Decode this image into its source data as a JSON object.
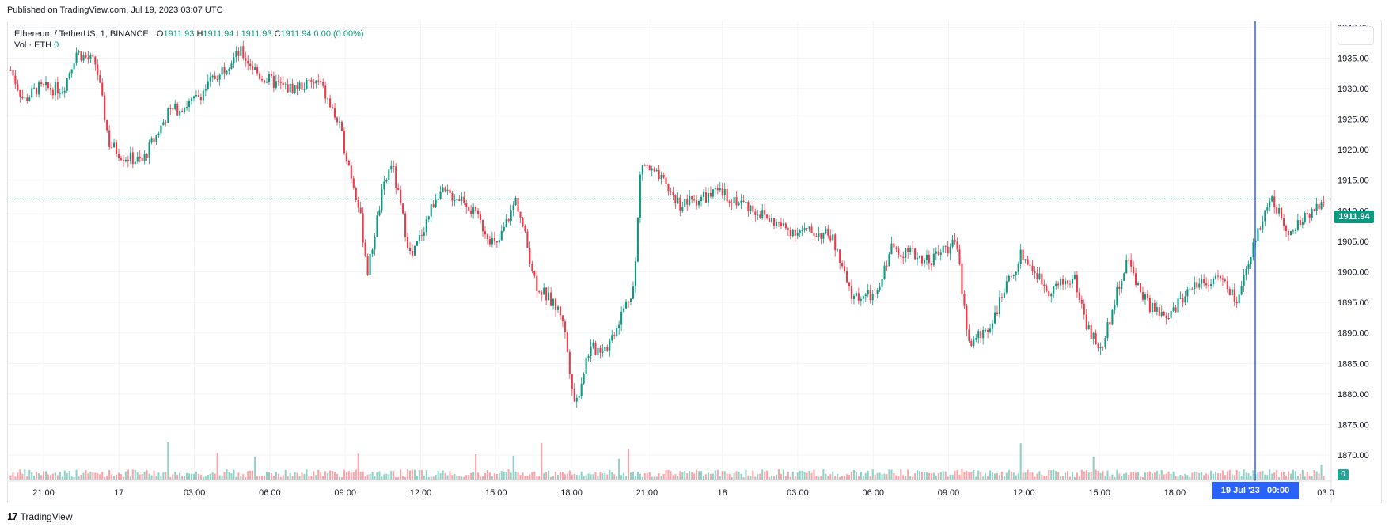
{
  "published": "Published on TradingView.com, Jul 19, 2023 03:07 UTC",
  "legend": {
    "symbol": "Ethereum / TetherUS, 1, BINANCE",
    "o_label": "O",
    "o_value": "1911.93",
    "h_label": "H",
    "h_value": "1911.94",
    "l_label": "L",
    "l_value": "1911.93",
    "c_label": "C",
    "c_value": "1911.94",
    "change": "0.00 (0.00%)",
    "vol_label": "Vol · ETH",
    "vol_value": "0"
  },
  "price_badge": "1911.94",
  "volume_badge": "0",
  "cursor_time": "19 Jul '23   00:00",
  "footer": {
    "logo_text": "TradingView"
  },
  "colors": {
    "up": "#089981",
    "down": "#f23645",
    "cursor": "#2962ff",
    "grid": "#f0f3fa"
  },
  "chart_data": {
    "type": "candlestick",
    "ylim": [
      1866,
      1941
    ],
    "y_ticks": [
      "1940.00",
      "1935.00",
      "1930.00",
      "1925.00",
      "1920.00",
      "1915.00",
      "1910.00",
      "1905.00",
      "1900.00",
      "1895.00",
      "1890.00",
      "1885.00",
      "1880.00",
      "1875.00",
      "1870.00"
    ],
    "x_ticks": [
      "21:00",
      "17",
      "03:00",
      "06:00",
      "09:00",
      "12:00",
      "15:00",
      "18:00",
      "21:00",
      "18",
      "03:00",
      "06:00",
      "09:00",
      "12:00",
      "15:00",
      "18:00",
      "21:00",
      "03:0"
    ],
    "last_price": 1911.94,
    "price_path": [
      [
        0,
        1933
      ],
      [
        0.01,
        1928
      ],
      [
        0.02,
        1930
      ],
      [
        0.04,
        1930
      ],
      [
        0.05,
        1936
      ],
      [
        0.065,
        1934
      ],
      [
        0.075,
        1921
      ],
      [
        0.085,
        1919
      ],
      [
        0.1,
        1918
      ],
      [
        0.12,
        1926
      ],
      [
        0.14,
        1928
      ],
      [
        0.16,
        1933
      ],
      [
        0.175,
        1936
      ],
      [
        0.19,
        1932
      ],
      [
        0.21,
        1930
      ],
      [
        0.235,
        1931
      ],
      [
        0.25,
        1924
      ],
      [
        0.265,
        1911
      ],
      [
        0.272,
        1900
      ],
      [
        0.282,
        1912
      ],
      [
        0.29,
        1918
      ],
      [
        0.305,
        1902
      ],
      [
        0.325,
        1913
      ],
      [
        0.345,
        1912
      ],
      [
        0.37,
        1904
      ],
      [
        0.385,
        1912
      ],
      [
        0.4,
        1898
      ],
      [
        0.42,
        1893
      ],
      [
        0.43,
        1878
      ],
      [
        0.44,
        1887
      ],
      [
        0.455,
        1888
      ],
      [
        0.475,
        1898
      ],
      [
        0.48,
        1918
      ],
      [
        0.495,
        1915
      ],
      [
        0.51,
        1911
      ],
      [
        0.54,
        1913
      ],
      [
        0.56,
        1911
      ],
      [
        0.59,
        1907
      ],
      [
        0.625,
        1906
      ],
      [
        0.64,
        1896
      ],
      [
        0.66,
        1896
      ],
      [
        0.67,
        1904
      ],
      [
        0.7,
        1902
      ],
      [
        0.72,
        1905
      ],
      [
        0.73,
        1888
      ],
      [
        0.745,
        1891
      ],
      [
        0.77,
        1903
      ],
      [
        0.79,
        1897
      ],
      [
        0.81,
        1899
      ],
      [
        0.82,
        1891
      ],
      [
        0.83,
        1887
      ],
      [
        0.85,
        1902
      ],
      [
        0.865,
        1895
      ],
      [
        0.88,
        1892
      ],
      [
        0.9,
        1898
      ],
      [
        0.92,
        1899
      ],
      [
        0.935,
        1895
      ],
      [
        0.95,
        1907
      ],
      [
        0.96,
        1912
      ],
      [
        0.975,
        1906
      ],
      [
        0.99,
        1910
      ],
      [
        1.0,
        1912
      ]
    ]
  }
}
